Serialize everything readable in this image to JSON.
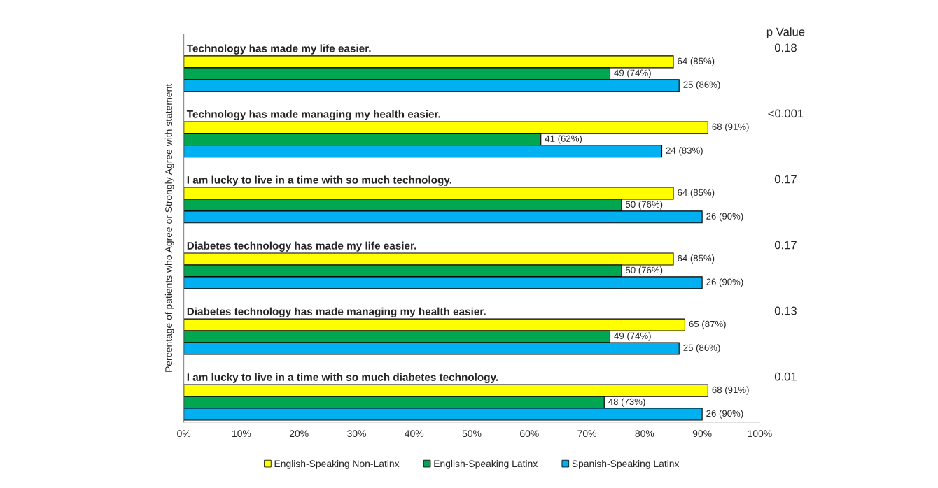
{
  "chart_data": {
    "type": "bar",
    "orientation": "horizontal",
    "ylabel": "Percentage of patients who Agree or Strongly Agree with statement",
    "categories": [
      "Technology has made my life easier.",
      "Technology has made managing my health easier.",
      "I am lucky to live in a time with so much technology.",
      "Diabetes technology has made my life easier.",
      "Diabetes technology has made managing my health easier.",
      "I am lucky to live in a time with so much diabetes technology."
    ],
    "series": [
      {
        "name": "English-Speaking Non-Latinx",
        "color": "#ffff00",
        "values": [
          85,
          91,
          85,
          85,
          87,
          91
        ],
        "value_labels": [
          "64 (85%)",
          "68 (91%)",
          "64 (85%)",
          "64 (85%)",
          "65 (87%)",
          "68 (91%)"
        ]
      },
      {
        "name": "English-Speaking Latinx",
        "color": "#00a650",
        "values": [
          74,
          62,
          76,
          76,
          74,
          73
        ],
        "value_labels": [
          "49 (74%)",
          "41 (62%)",
          "50 (76%)",
          "50 (76%)",
          "49 (74%)",
          "48 (73%)"
        ]
      },
      {
        "name": "Spanish-Speaking Latinx",
        "color": "#00b0f0",
        "values": [
          86,
          83,
          90,
          90,
          86,
          90
        ],
        "value_labels": [
          "25 (86%)",
          "24 (83%)",
          "26 (90%)",
          "26 (90%)",
          "25 (86%)",
          "26 (90%)"
        ]
      }
    ],
    "xlim": [
      0,
      100
    ],
    "xticks": [
      {
        "value": 0,
        "label": "0%"
      },
      {
        "value": 10,
        "label": "10%"
      },
      {
        "value": 20,
        "label": "20%"
      },
      {
        "value": 30,
        "label": "30%"
      },
      {
        "value": 40,
        "label": "40%"
      },
      {
        "value": 50,
        "label": "50%"
      },
      {
        "value": 60,
        "label": "60%"
      },
      {
        "value": 70,
        "label": "70%"
      },
      {
        "value": 80,
        "label": "80%"
      },
      {
        "value": 90,
        "label": "90%"
      },
      {
        "value": 100,
        "label": "100%"
      }
    ],
    "tick_labels": "x",
    "annotations": [
      "p Value",
      "0.18",
      "<0.001",
      "0.17",
      "0.17",
      "0.13",
      "0.01"
    ],
    "legend": "bottom",
    "grid": false
  }
}
